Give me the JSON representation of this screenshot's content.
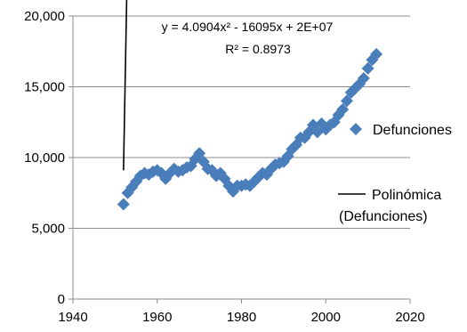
{
  "chart_data": {
    "type": "scatter",
    "xlim": [
      1940,
      2020
    ],
    "ylim": [
      0,
      20000
    ],
    "x_ticks": [
      1940,
      1960,
      1980,
      2000,
      2020
    ],
    "y_ticks": [
      0,
      5000,
      10000,
      15000,
      20000
    ],
    "x_tick_labels": [
      "1940",
      "1960",
      "1980",
      "2000",
      "2020"
    ],
    "y_tick_labels": [
      "0",
      "5,000",
      "10,000",
      "15,000",
      "20,000"
    ],
    "grid": "horizontal",
    "legend_position": "right",
    "series": [
      {
        "name": "Defunciones",
        "kind": "scatter",
        "marker": "diamond",
        "color": "#4a7ebb",
        "x": [
          1952,
          1953,
          1954,
          1955,
          1956,
          1957,
          1958,
          1959,
          1960,
          1961,
          1962,
          1963,
          1964,
          1965,
          1966,
          1967,
          1968,
          1969,
          1970,
          1971,
          1972,
          1973,
          1974,
          1975,
          1976,
          1977,
          1978,
          1979,
          1980,
          1981,
          1982,
          1983,
          1984,
          1985,
          1986,
          1987,
          1988,
          1989,
          1990,
          1991,
          1992,
          1993,
          1994,
          1995,
          1996,
          1997,
          1998,
          1999,
          2000,
          2001,
          2002,
          2003,
          2004,
          2005,
          2006,
          2007,
          2008,
          2009,
          2010,
          2011,
          2012
        ],
        "y": [
          6700,
          7500,
          7900,
          8300,
          8700,
          8900,
          8800,
          9000,
          9100,
          8900,
          8500,
          8900,
          9200,
          9000,
          9100,
          9300,
          9400,
          9900,
          10300,
          9700,
          9200,
          9100,
          8700,
          8900,
          8500,
          8000,
          7600,
          8000,
          8000,
          8100,
          8000,
          8300,
          8600,
          8900,
          8800,
          9200,
          9500,
          9600,
          9700,
          10100,
          10600,
          10900,
          11400,
          11400,
          11800,
          12300,
          11800,
          12400,
          12000,
          12300,
          12500,
          13000,
          13400,
          14000,
          14600,
          14900,
          15200,
          15600,
          16300,
          16900,
          17300
        ]
      },
      {
        "name": "Polinómica (Defunciones)",
        "kind": "trendline",
        "color": "#000000",
        "coefficients": {
          "a": 4.0904,
          "b": -16095,
          "c": 20000000
        },
        "x_range": [
          1952,
          2012
        ]
      }
    ],
    "annotations": {
      "equation": "y = 4.0904x² - 16095x + 2E+07",
      "r_squared": "R² = 0.8973"
    },
    "legend": {
      "scatter_label": "Defunciones",
      "trend_label_line1": "Polinómica",
      "trend_label_line2": "(Defunciones)"
    }
  }
}
